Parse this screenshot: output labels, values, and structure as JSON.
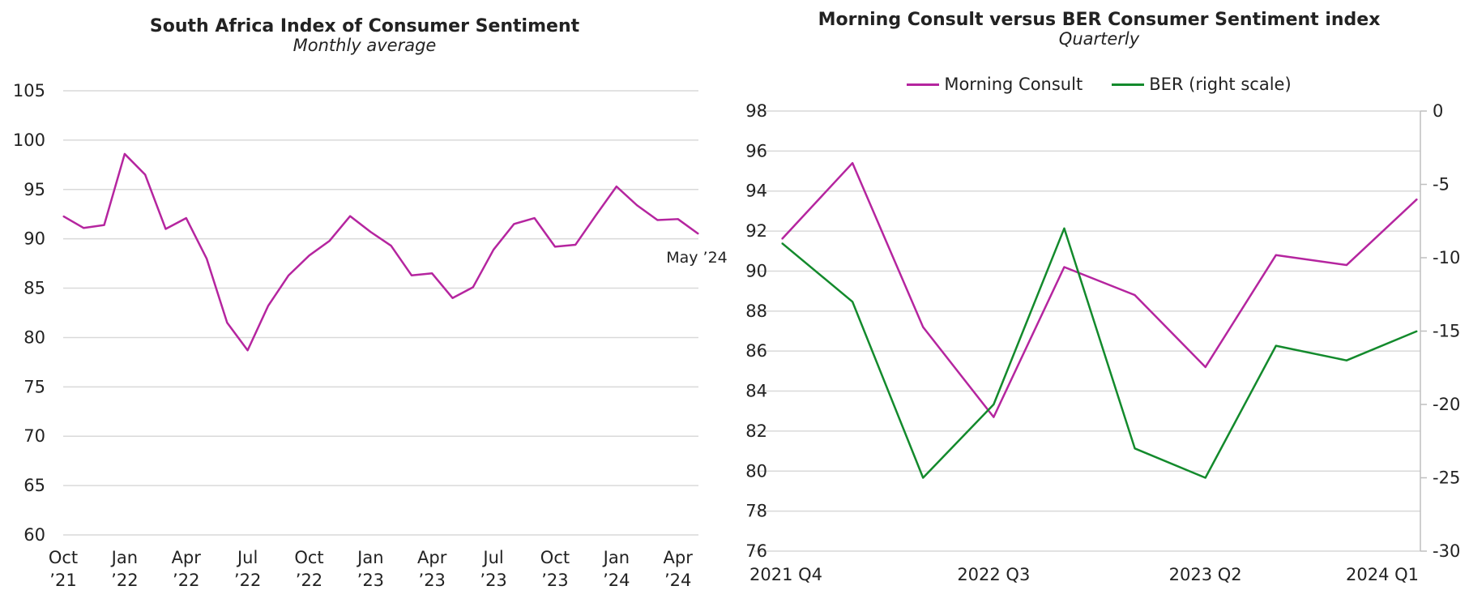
{
  "chart_data": [
    {
      "type": "line",
      "title": "South Africa Index of Consumer Sentiment",
      "subtitle": "Monthly average",
      "xlabel": "",
      "ylabel": "",
      "ylim": [
        60,
        105
      ],
      "yticks": [
        60,
        65,
        70,
        75,
        80,
        85,
        90,
        95,
        100,
        105
      ],
      "grid": true,
      "categories": [
        "Oct '21",
        "Nov '21",
        "Dec '21",
        "Jan '22",
        "Feb '22",
        "Mar '22",
        "Apr '22",
        "May '22",
        "Jun '22",
        "Jul '22",
        "Aug '22",
        "Sep '22",
        "Oct '22",
        "Nov '22",
        "Dec '22",
        "Jan '23",
        "Feb '23",
        "Mar '23",
        "Apr '23",
        "May '23",
        "Jun '23",
        "Jul '23",
        "Aug '23",
        "Sep '23",
        "Oct '23",
        "Nov '23",
        "Dec '23",
        "Jan '24",
        "Feb '24",
        "Mar '24",
        "Apr '24",
        "May '24"
      ],
      "xtick_labels": [
        {
          "line1": "Oct",
          "line2": "’21",
          "index": 0
        },
        {
          "line1": "Jan",
          "line2": "’22",
          "index": 3
        },
        {
          "line1": "Apr",
          "line2": "’22",
          "index": 6
        },
        {
          "line1": "Jul",
          "line2": "’22",
          "index": 9
        },
        {
          "line1": "Oct",
          "line2": "’22",
          "index": 12
        },
        {
          "line1": "Jan",
          "line2": "’23",
          "index": 15
        },
        {
          "line1": "Apr",
          "line2": "’23",
          "index": 18
        },
        {
          "line1": "Jul",
          "line2": "’23",
          "index": 21
        },
        {
          "line1": "Oct",
          "line2": "’23",
          "index": 24
        },
        {
          "line1": "Jan",
          "line2": "’24",
          "index": 27
        },
        {
          "line1": "Apr",
          "line2": "’24",
          "index": 30
        }
      ],
      "series": [
        {
          "values": [
            92.3,
            91.1,
            91.4,
            98.6,
            96.5,
            91.0,
            92.1,
            88.0,
            81.5,
            78.7,
            83.2,
            86.3,
            88.3,
            89.8,
            92.3,
            90.7,
            89.3,
            86.3,
            86.5,
            84.0,
            85.1,
            88.9,
            91.5,
            92.1,
            89.2,
            89.4,
            92.4,
            95.3,
            93.4,
            91.9,
            92.0,
            90.5
          ],
          "color": "#b5259f"
        }
      ],
      "annotation": "May ’24"
    },
    {
      "type": "line",
      "title": "Morning Consult versus BER Consumer Sentiment index",
      "subtitle": "Quarterly",
      "xlabel": "",
      "ylabel": "",
      "ylim": [
        76,
        98
      ],
      "yticks": [
        76,
        78,
        80,
        82,
        84,
        86,
        88,
        90,
        92,
        94,
        96,
        98
      ],
      "y2lim": [
        -30,
        0
      ],
      "y2ticks": [
        -30,
        -25,
        -20,
        -15,
        -10,
        -5,
        0
      ],
      "grid": true,
      "legend_position": "top",
      "categories": [
        "2021 Q4",
        "2022 Q1",
        "2022 Q2",
        "2022 Q3",
        "2022 Q4",
        "2023 Q1",
        "2023 Q2",
        "2023 Q3",
        "2023 Q4",
        "2024 Q1"
      ],
      "xtick_labels": [
        {
          "label": "2021 Q4",
          "index": 0
        },
        {
          "label": "2022 Q3",
          "index": 3
        },
        {
          "label": "2023 Q2",
          "index": 6
        },
        {
          "label": "2024 Q1",
          "index": 9
        }
      ],
      "series": [
        {
          "name": "Morning Consult",
          "axis": "left",
          "color": "#b5259f",
          "values": [
            91.6,
            95.4,
            87.2,
            82.7,
            90.2,
            88.8,
            85.2,
            90.8,
            90.3,
            93.6
          ]
        },
        {
          "name": "BER (right scale)",
          "axis": "right",
          "color": "#138a2c",
          "values": [
            -9,
            -13,
            -25,
            -20,
            -8,
            -23,
            -25,
            -16,
            -17,
            -15
          ]
        }
      ]
    }
  ]
}
